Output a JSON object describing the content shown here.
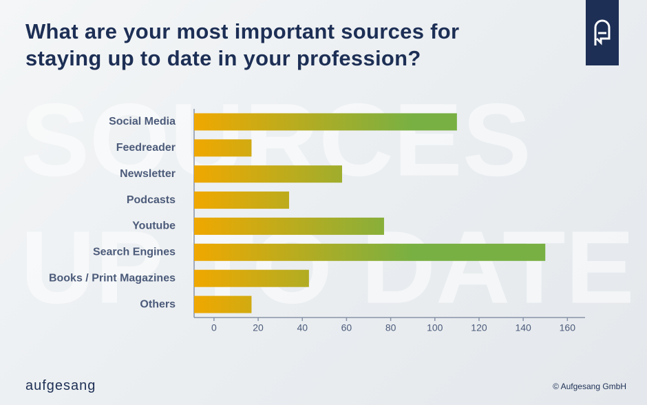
{
  "title": "What are your most important sources for staying up to date in your profession?",
  "watermark": [
    "SOURCES",
    "UP TO DATE"
  ],
  "brand": "aufgesang",
  "copyright": "© Aufgesang GmbH",
  "chart_data": {
    "type": "bar",
    "orientation": "horizontal",
    "categories": [
      "Social Media",
      "Feedreader",
      "Newsletter",
      "Podcasts",
      "Youtube",
      "Search Engines",
      "Books / Print Magazines",
      "Others"
    ],
    "values": [
      110,
      17,
      58,
      34,
      77,
      150,
      43,
      17
    ],
    "colors": [
      "#f0a800",
      "#78b043"
    ],
    "xlim": [
      -9,
      168
    ],
    "xticks": [
      0,
      20,
      40,
      60,
      80,
      100,
      120,
      140,
      160
    ]
  }
}
